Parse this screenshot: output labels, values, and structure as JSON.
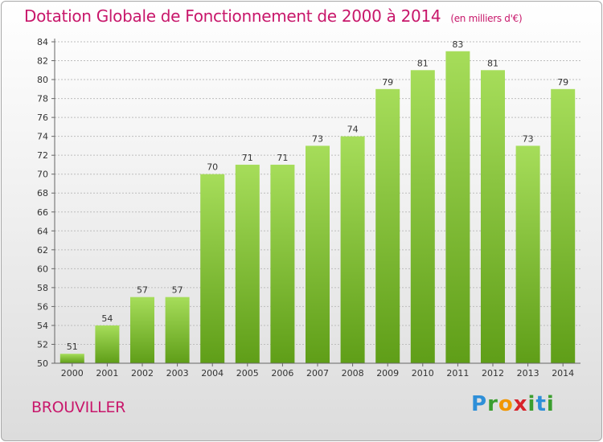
{
  "header": {
    "title": "Dotation Globale de Fonctionnement de 2000 à 2014",
    "subtitle": "(en milliers d'€)"
  },
  "footer": {
    "commune": "BROUVILLER",
    "logo_letters": [
      "P",
      "r",
      "o",
      "x",
      "i",
      "t",
      "i"
    ]
  },
  "colors": {
    "title": "#c8176b",
    "bar_light": "#a6dd5a",
    "bar_dark": "#5f9e18",
    "grid": "#bdbdbd"
  },
  "chart_data": {
    "type": "bar",
    "title": "Dotation Globale de Fonctionnement de 2000 à 2014",
    "subtitle": "(en milliers d'€)",
    "xlabel": "",
    "ylabel": "",
    "categories": [
      "2000",
      "2001",
      "2002",
      "2003",
      "2004",
      "2005",
      "2006",
      "2007",
      "2008",
      "2009",
      "2010",
      "2011",
      "2012",
      "2013",
      "2014"
    ],
    "values": [
      51,
      54,
      57,
      57,
      70,
      71,
      71,
      73,
      74,
      79,
      81,
      83,
      81,
      73,
      79
    ],
    "ylim": [
      50,
      84
    ],
    "yticks": [
      50,
      52,
      54,
      56,
      58,
      60,
      62,
      64,
      66,
      68,
      70,
      72,
      74,
      76,
      78,
      80,
      82,
      84
    ],
    "grid": true,
    "data_labels": true
  }
}
